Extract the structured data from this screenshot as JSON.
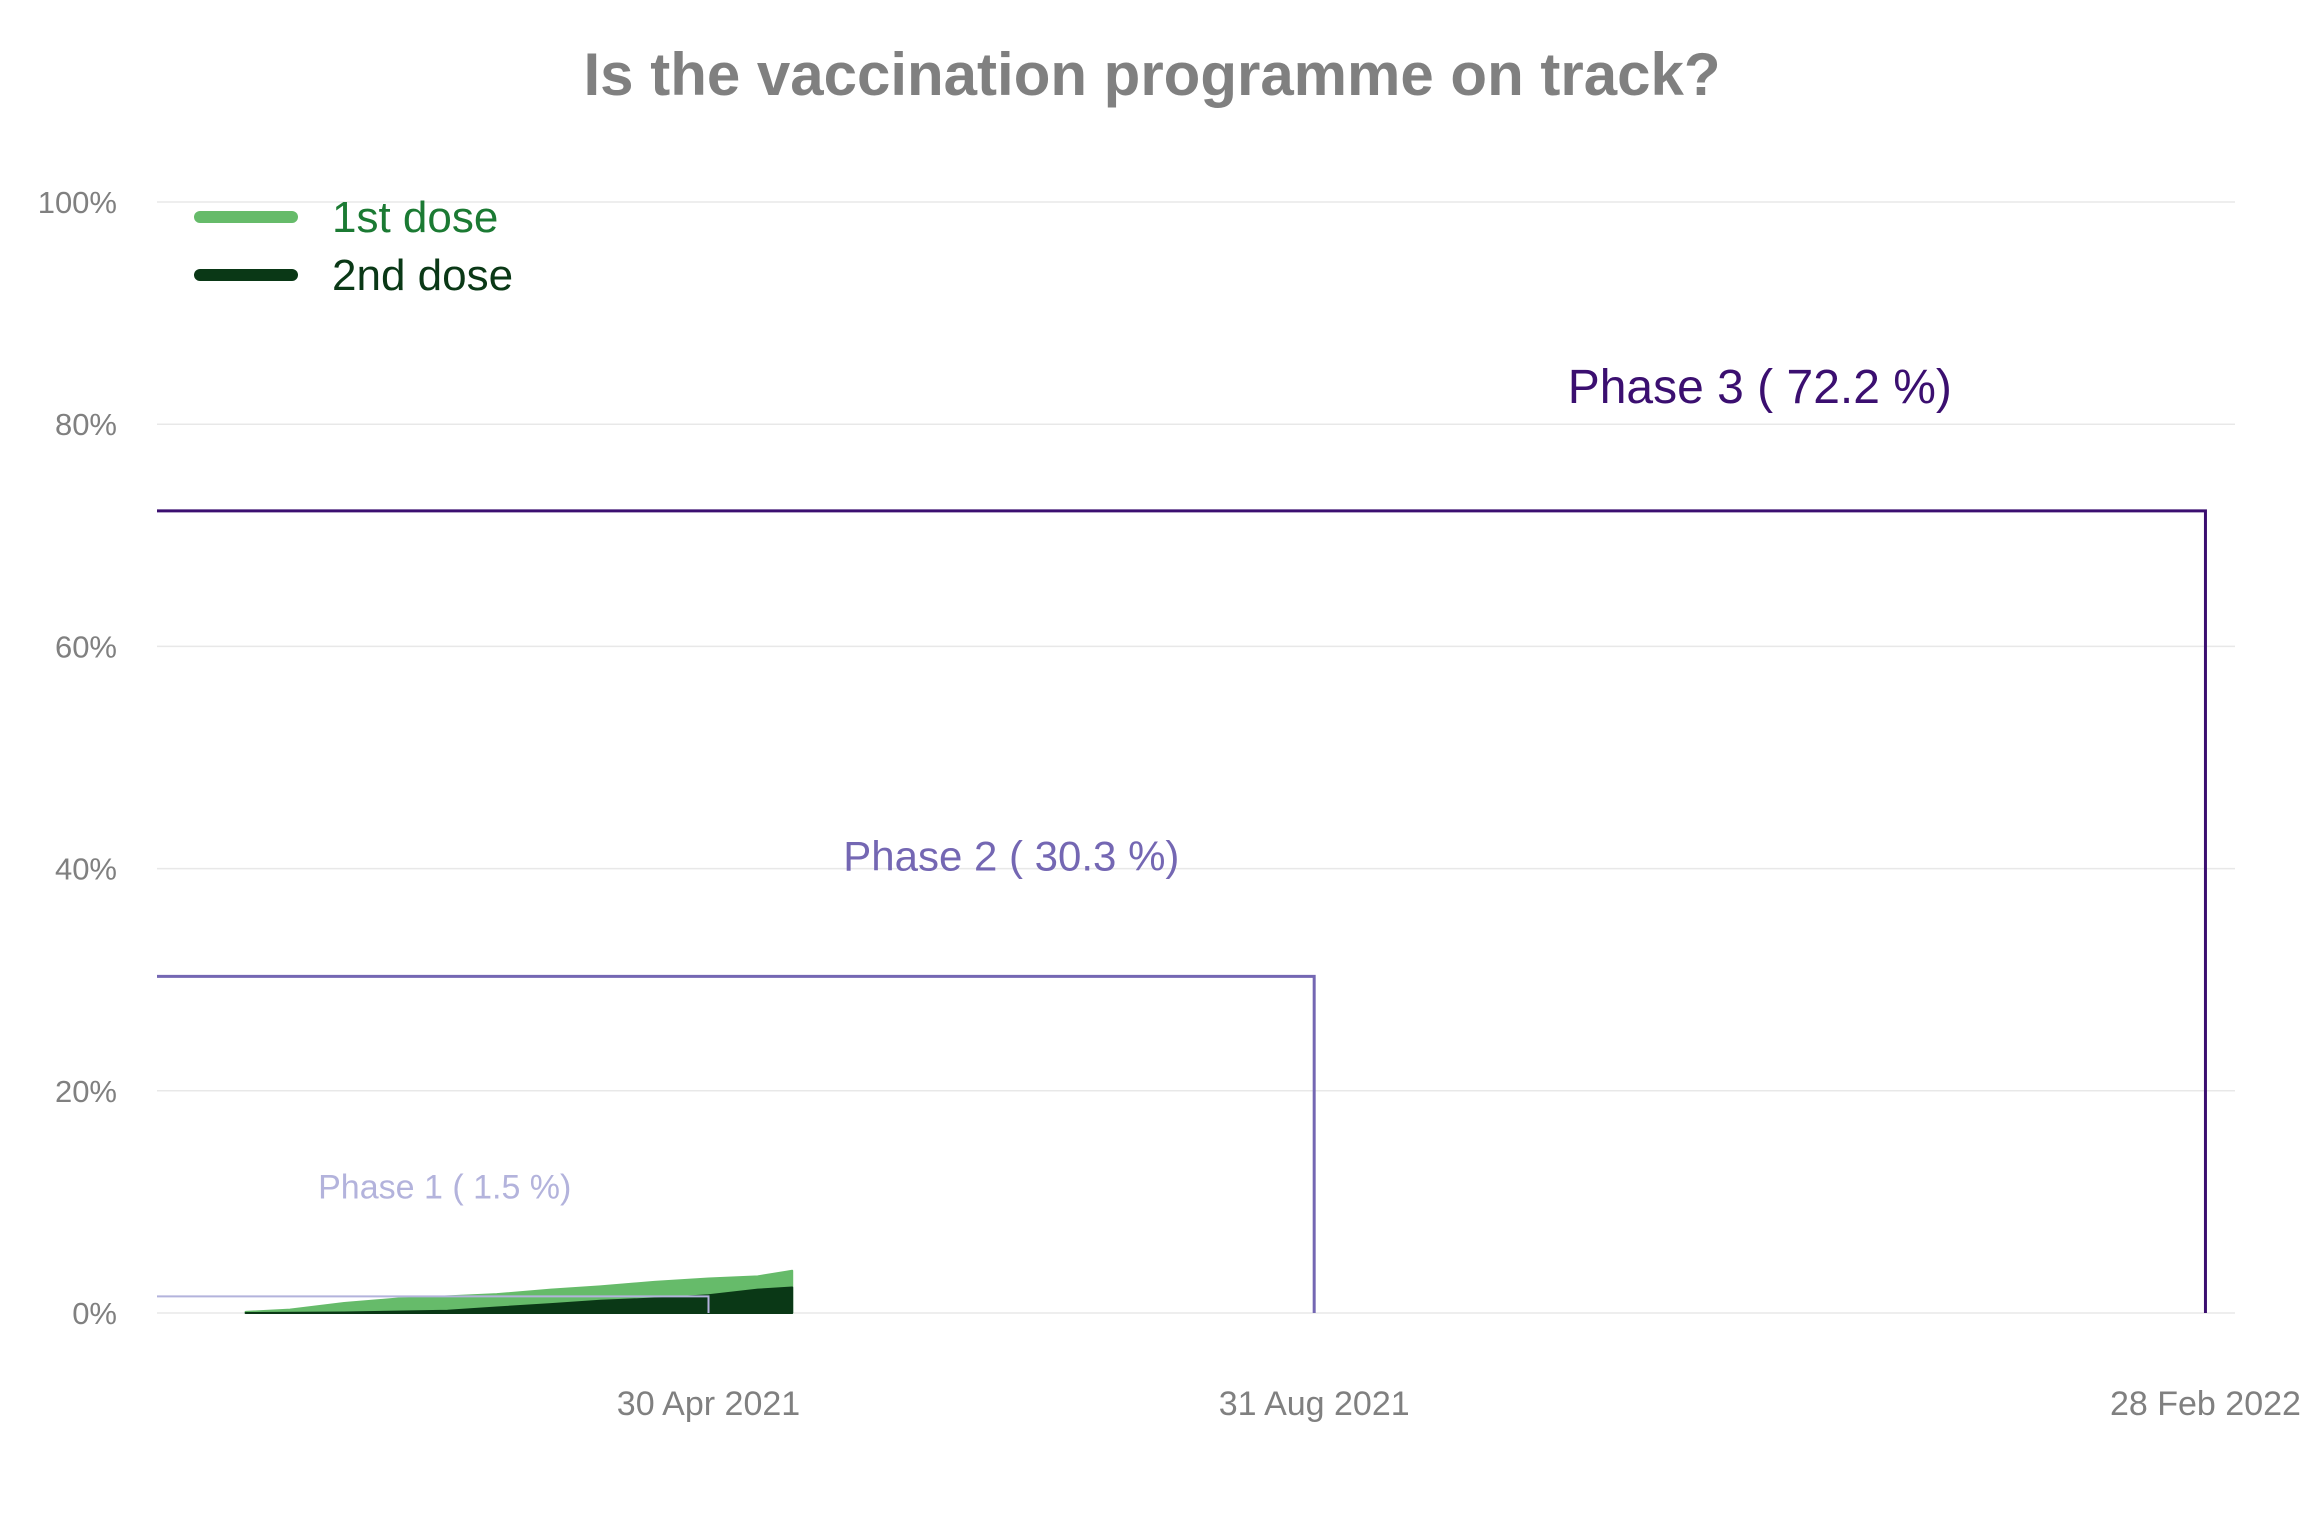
{
  "chart_data": {
    "type": "area",
    "title": "Is the vaccination programme on track?",
    "xlabel": "",
    "ylabel": "",
    "ylim": [
      0,
      100
    ],
    "xlim": [
      "2021-01-08",
      "2022-03-06"
    ],
    "y_ticks": [
      0,
      20,
      40,
      60,
      80,
      100
    ],
    "y_tick_labels": [
      "0%",
      "20%",
      "40%",
      "60%",
      "80%",
      "100%"
    ],
    "x_ticks": [
      "2021-04-30",
      "2021-08-31",
      "2022-02-28"
    ],
    "x_tick_labels": [
      "30 Apr 2021",
      "31 Aug 2021",
      "28 Feb 2022"
    ],
    "grid": "horizontal",
    "legend": {
      "position": "top-left",
      "entries": [
        {
          "label": "1st dose",
          "color": "#66bb6a"
        },
        {
          "label": "2nd dose",
          "color": "#0a3816"
        }
      ]
    },
    "series": [
      {
        "name": "1st dose",
        "color": "#66bb6a",
        "x": [
          "2021-01-26",
          "2021-02-04",
          "2021-02-15",
          "2021-02-26",
          "2021-03-08",
          "2021-03-18",
          "2021-03-29",
          "2021-04-08",
          "2021-04-19",
          "2021-04-30",
          "2021-05-10",
          "2021-05-17"
        ],
        "values": [
          0.1,
          0.3,
          0.9,
          1.3,
          1.5,
          1.7,
          2.1,
          2.4,
          2.8,
          3.1,
          3.3,
          3.8
        ]
      },
      {
        "name": "2nd dose",
        "color": "#0a3816",
        "x": [
          "2021-01-26",
          "2021-02-15",
          "2021-03-08",
          "2021-03-18",
          "2021-03-29",
          "2021-04-08",
          "2021-04-19",
          "2021-04-30",
          "2021-05-10",
          "2021-05-17"
        ],
        "values": [
          0.0,
          0.05,
          0.2,
          0.5,
          0.8,
          1.1,
          1.3,
          1.6,
          2.1,
          2.3
        ]
      }
    ],
    "phases": [
      {
        "label": "Phase 1  ( 1.5 %)",
        "target": 1.5,
        "end": "2021-04-30",
        "color": "#b3b3dc"
      },
      {
        "label": "Phase 2  ( 30.3 %)",
        "target": 30.3,
        "end": "2021-08-31",
        "color": "#7467b3"
      },
      {
        "label": "Phase 3  ( 72.2 %)",
        "target": 72.2,
        "end": "2022-02-28",
        "color": "#3b0f70"
      }
    ],
    "axis_text_color": "#808080"
  }
}
